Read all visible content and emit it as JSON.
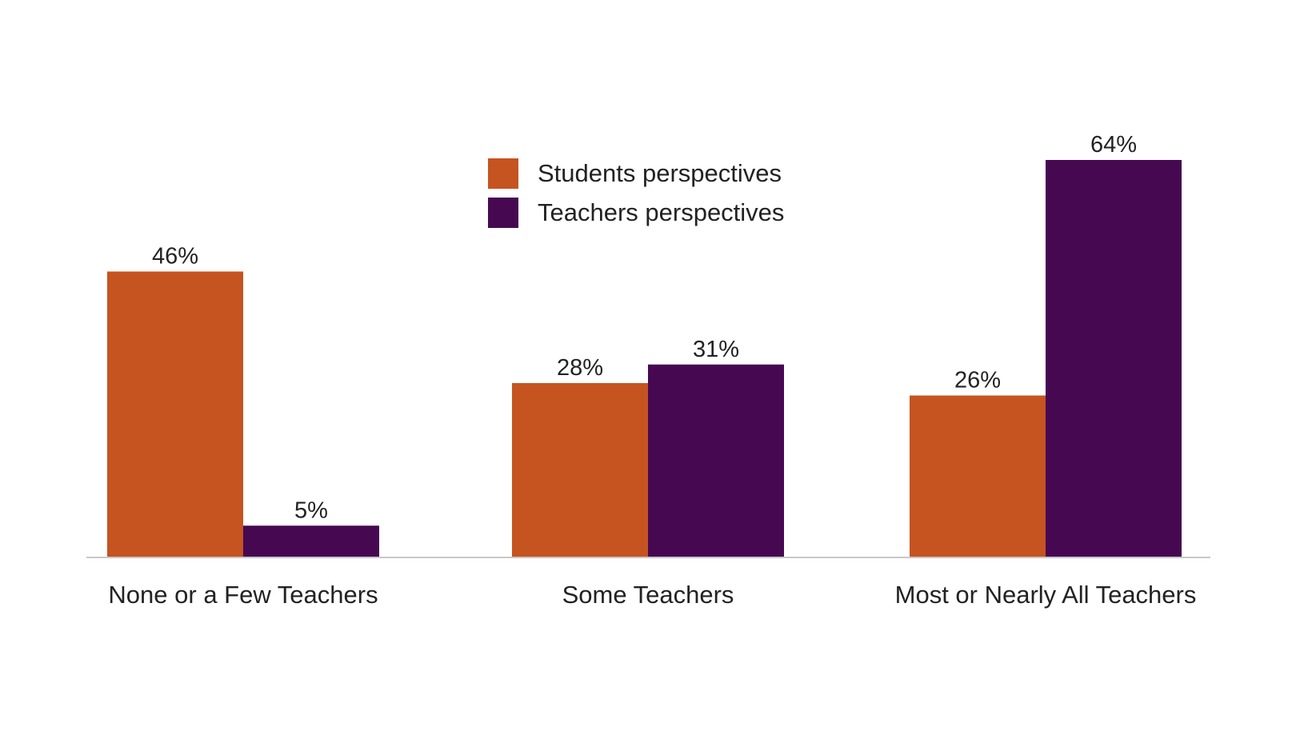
{
  "chart_data": {
    "type": "bar",
    "title": "",
    "xlabel": "",
    "ylabel": "",
    "ylim": [
      0,
      64
    ],
    "grid": false,
    "legend_position": "top-center",
    "categories": [
      "None or a Few Teachers",
      "Some Teachers",
      "Most or Nearly All Teachers"
    ],
    "series": [
      {
        "name": "Students perspectives",
        "color": "#C55420",
        "values": [
          46,
          28,
          26
        ],
        "labels": [
          "46%",
          "28%",
          "26%"
        ]
      },
      {
        "name": "Teachers perspectives",
        "color": "#470852",
        "values": [
          5,
          31,
          64
        ],
        "labels": [
          "5%",
          "31%",
          "64%"
        ]
      }
    ],
    "axis_color": "#c8c8c8"
  }
}
